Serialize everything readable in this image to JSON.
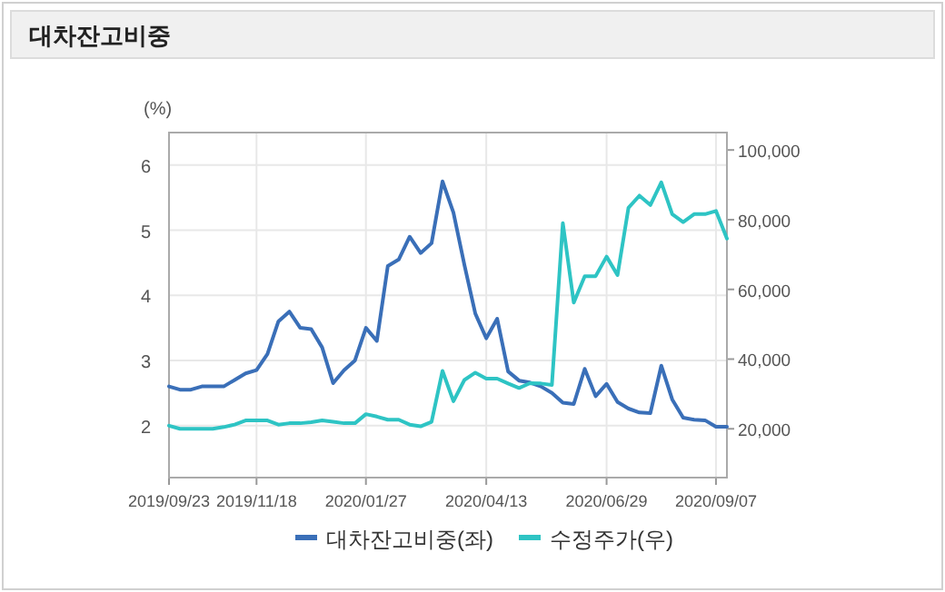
{
  "chart_data": {
    "type": "line",
    "title": "대차잔고비중",
    "ylabel": "(%)",
    "x": [
      "2019-09-23",
      "2019-09-30",
      "2019-10-07",
      "2019-10-14",
      "2019-10-21",
      "2019-10-28",
      "2019-11-04",
      "2019-11-11",
      "2019-11-18",
      "2019-11-25",
      "2019-12-02",
      "2019-12-09",
      "2019-12-16",
      "2019-12-23",
      "2019-12-30",
      "2020-01-06",
      "2020-01-13",
      "2020-01-20",
      "2020-01-27",
      "2020-02-03",
      "2020-02-10",
      "2020-02-17",
      "2020-02-24",
      "2020-03-02",
      "2020-03-09",
      "2020-03-16",
      "2020-03-23",
      "2020-03-30",
      "2020-04-06",
      "2020-04-13",
      "2020-04-20",
      "2020-04-27",
      "2020-05-04",
      "2020-05-11",
      "2020-05-18",
      "2020-05-25",
      "2020-06-01",
      "2020-06-08",
      "2020-06-15",
      "2020-06-22",
      "2020-06-29",
      "2020-07-06",
      "2020-07-13",
      "2020-07-20",
      "2020-07-27",
      "2020-08-03",
      "2020-08-10",
      "2020-08-17",
      "2020-08-24",
      "2020-08-31",
      "2020-09-07",
      "2020-09-14"
    ],
    "series": [
      {
        "name": "대차잔고비중(좌)",
        "color": "#3a6fb8",
        "values": [
          2.6,
          2.55,
          2.55,
          2.6,
          2.6,
          2.6,
          2.7,
          2.8,
          2.85,
          3.1,
          3.6,
          3.75,
          3.5,
          3.48,
          3.2,
          2.65,
          2.85,
          3.0,
          3.5,
          3.3,
          4.45,
          4.55,
          4.9,
          4.65,
          4.8,
          5.75,
          5.27,
          4.47,
          3.72,
          3.34,
          3.64,
          2.83,
          2.69,
          2.66,
          2.6,
          2.5,
          2.35,
          2.33,
          2.87,
          2.45,
          2.64,
          2.36,
          2.26,
          2.2,
          2.19,
          2.92,
          2.4,
          2.12,
          2.09,
          2.08,
          1.98,
          1.98
        ]
      },
      {
        "name": "수정주가(우)",
        "color": "#2ec4c4",
        "axis": "y2",
        "values": [
          20900,
          20000,
          20000,
          20000,
          20000,
          20500,
          21200,
          22400,
          22400,
          22400,
          21200,
          21600,
          21600,
          21900,
          22400,
          22000,
          21600,
          21600,
          24200,
          23500,
          22600,
          22600,
          21200,
          20700,
          22000,
          36600,
          27900,
          34000,
          36100,
          34400,
          34400,
          33000,
          31700,
          33100,
          33000,
          32600,
          79000,
          56200,
          63800,
          63800,
          69400,
          64100,
          83400,
          86900,
          84200,
          90700,
          81600,
          79300,
          81600,
          81600,
          82500,
          74600
        ]
      }
    ],
    "xlim": [
      "2019-09-23",
      "2020-09-14"
    ],
    "xticks": [
      {
        "value": "2019-09-23",
        "label": "2019/09/23"
      },
      {
        "value": "2019-11-18",
        "label": "2019/11/18"
      },
      {
        "value": "2020-01-27",
        "label": "2020/01/27"
      },
      {
        "value": "2020-04-13",
        "label": "2020/04/13"
      },
      {
        "value": "2020-06-29",
        "label": "2020/06/29"
      },
      {
        "value": "2020-09-07",
        "label": "2020/09/07"
      }
    ],
    "ylim": [
      1.2,
      6.5
    ],
    "yticks": [
      2,
      3,
      4,
      5,
      6
    ],
    "y2lim": [
      6000,
      105000
    ],
    "y2ticks": [
      {
        "value": 20000,
        "label": "20,000"
      },
      {
        "value": 40000,
        "label": "40,000"
      },
      {
        "value": 60000,
        "label": "60,000"
      },
      {
        "value": 80000,
        "label": "80,000"
      },
      {
        "value": 100000,
        "label": "100,000"
      }
    ],
    "grid": true,
    "legend": "bottom",
    "line_style": "solid",
    "marker": "none"
  }
}
